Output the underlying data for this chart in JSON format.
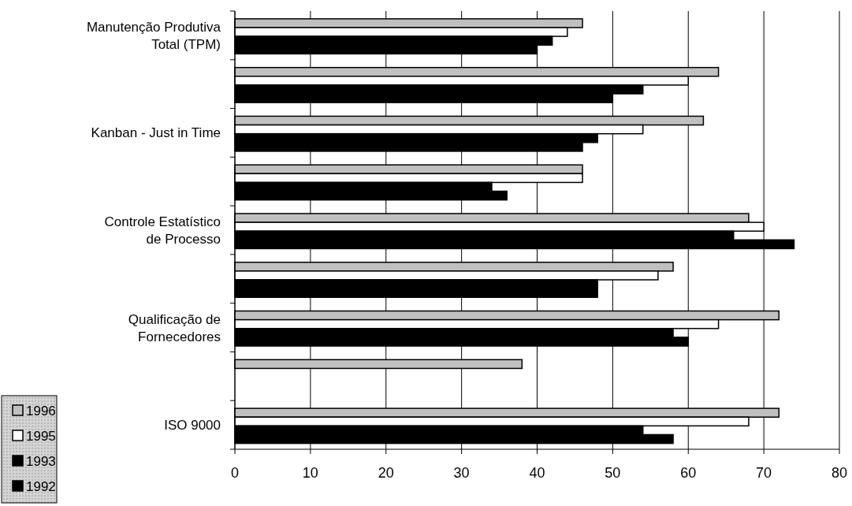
{
  "chart_data": {
    "type": "bar",
    "orientation": "horizontal",
    "categories": [
      "Manutenção Produtiva Total (TPM)",
      null,
      "Kanban - Just in Time",
      null,
      "Controle Estatístico de Processo",
      null,
      "Qualificação de Fornecedores",
      null,
      "ISO 9000"
    ],
    "series": [
      {
        "name": "1996",
        "color": "#c0c0c0",
        "values": [
          46,
          64,
          62,
          46,
          68,
          58,
          72,
          38,
          72
        ]
      },
      {
        "name": "1995",
        "color": "#ffffff",
        "values": [
          44,
          60,
          54,
          46,
          70,
          56,
          64,
          null,
          68
        ]
      },
      {
        "name": "1993",
        "color": "#000000",
        "values": [
          42,
          54,
          48,
          34,
          66,
          48,
          58,
          null,
          54
        ]
      },
      {
        "name": "1992",
        "color": "#000000",
        "values": [
          40,
          50,
          46,
          36,
          74,
          48,
          60,
          null,
          58
        ]
      }
    ],
    "xlim": [
      0,
      80
    ],
    "xticks": [
      0,
      10,
      20,
      30,
      40,
      50,
      60,
      70,
      80
    ],
    "grid": "x",
    "legend": "bottom left"
  }
}
